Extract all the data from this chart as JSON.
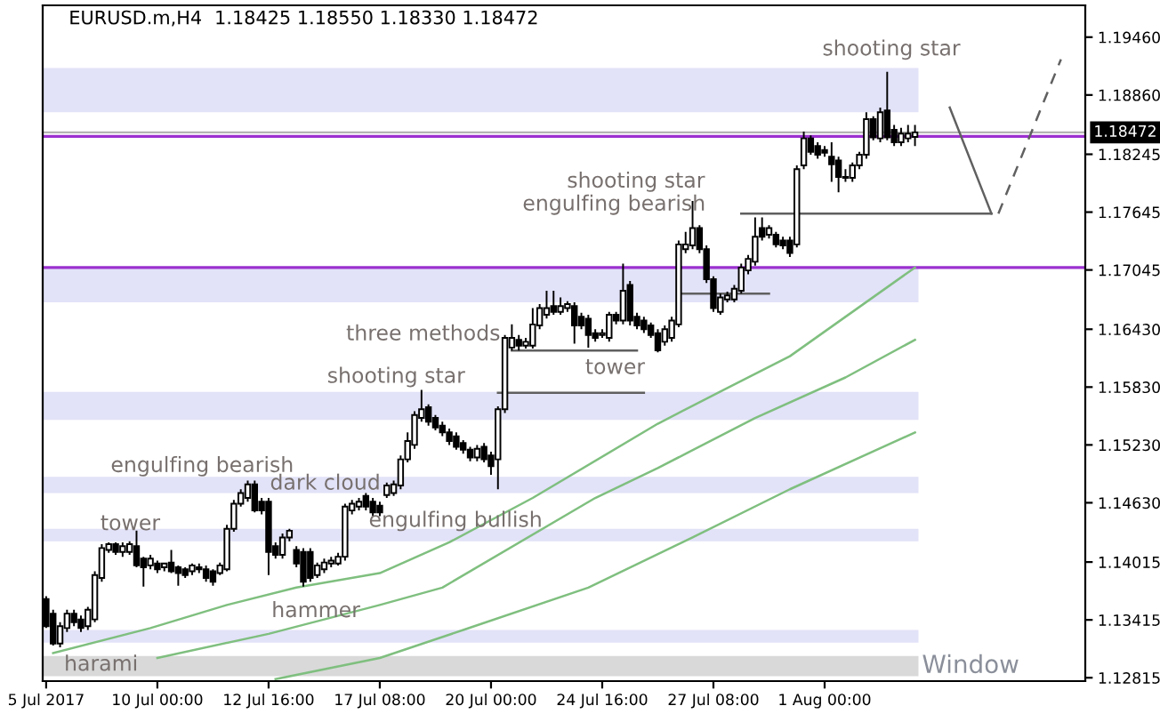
{
  "chart_data": {
    "type": "candlestick",
    "title": "EURUSD.m,H4",
    "subtitle": "1.18425 1.18550 1.18330 1.18472",
    "categories": [
      "5 Jul 2017",
      null,
      null,
      null,
      null,
      null,
      null,
      null,
      null,
      null,
      null,
      null,
      null,
      null,
      null,
      null,
      "10 Jul 00:00",
      null,
      null,
      null,
      null,
      null,
      null,
      null,
      null,
      null,
      null,
      null,
      null,
      null,
      null,
      null,
      "12 Jul 16:00",
      null,
      null,
      null,
      null,
      null,
      null,
      null,
      null,
      null,
      null,
      null,
      null,
      null,
      null,
      null,
      "17 Jul 08:00",
      null,
      null,
      null,
      null,
      null,
      null,
      null,
      null,
      null,
      null,
      null,
      null,
      null,
      null,
      null,
      "20 Jul 00:00",
      null,
      null,
      null,
      null,
      null,
      null,
      null,
      null,
      null,
      null,
      null,
      null,
      null,
      null,
      null,
      "24 Jul 16:00",
      null,
      null,
      null,
      null,
      null,
      null,
      null,
      null,
      null,
      null,
      null,
      null,
      null,
      null,
      null,
      "27 Jul 08:00",
      null,
      null,
      null,
      null,
      null,
      null,
      null,
      null,
      null,
      null,
      null,
      null,
      null,
      null,
      null,
      "1 Aug 00:00",
      null,
      null,
      null,
      null,
      null,
      null,
      null,
      null,
      null,
      null,
      null,
      null,
      null,
      null,
      null,
      null,
      null,
      null,
      null,
      null,
      null,
      null,
      null,
      null,
      null,
      null,
      null,
      null,
      null,
      null,
      null,
      null,
      null,
      null,
      null,
      null,
      null
    ],
    "ohlc": [
      [
        1.1363,
        1.1366,
        1.1333,
        1.1335
      ],
      [
        1.1348,
        1.1352,
        1.1315,
        1.1317
      ],
      [
        1.1317,
        1.1339,
        1.1313,
        1.1335
      ],
      [
        1.1333,
        1.1352,
        1.1329,
        1.1348
      ],
      [
        1.1348,
        1.1352,
        1.1335,
        1.1339
      ],
      [
        1.1342,
        1.1346,
        1.1329,
        1.1333
      ],
      [
        1.1335,
        1.1355,
        1.1331,
        1.1352
      ],
      [
        1.1342,
        1.1392,
        1.1339,
        1.1388
      ],
      [
        1.1385,
        1.142,
        1.1381,
        1.1416
      ],
      [
        1.1414,
        1.1422,
        1.1411,
        1.142
      ],
      [
        1.142,
        1.1422,
        1.1409,
        1.1412
      ],
      [
        1.1412,
        1.1422,
        1.1407,
        1.1418
      ],
      [
        1.1412,
        1.1423,
        1.1409,
        1.142
      ],
      [
        1.1418,
        1.1434,
        1.1396,
        1.1398
      ],
      [
        1.1405,
        1.1407,
        1.1376,
        1.1396
      ],
      [
        1.1398,
        1.1409,
        1.1394,
        1.1405
      ],
      [
        1.14,
        1.1403,
        1.139,
        1.1394
      ],
      [
        1.1396,
        1.1401,
        1.1392,
        1.14
      ],
      [
        1.1401,
        1.1414,
        1.139,
        1.1392
      ],
      [
        1.1396,
        1.1398,
        1.1377,
        1.139
      ],
      [
        1.1394,
        1.1396,
        1.1385,
        1.1388
      ],
      [
        1.1392,
        1.14,
        1.1388,
        1.1398
      ],
      [
        1.1396,
        1.14,
        1.139,
        1.1394
      ],
      [
        1.1394,
        1.1398,
        1.1381,
        1.1385
      ],
      [
        1.1392,
        1.1394,
        1.1377,
        1.1381
      ],
      [
        1.139,
        1.1401,
        1.1388,
        1.1398
      ],
      [
        1.1394,
        1.144,
        1.1392,
        1.1436
      ],
      [
        1.1436,
        1.1466,
        1.1433,
        1.1462
      ],
      [
        1.1462,
        1.1477,
        1.1459,
        1.1473
      ],
      [
        1.1468,
        1.1486,
        1.1464,
        1.1482
      ],
      [
        1.1482,
        1.1486,
        1.1453,
        1.1455
      ],
      [
        1.1464,
        1.1468,
        1.1451,
        1.1455
      ],
      [
        1.1464,
        1.1468,
        1.1388,
        1.1412
      ],
      [
        1.1418,
        1.1422,
        1.1405,
        1.1409
      ],
      [
        1.1409,
        1.1431,
        1.1405,
        1.1427
      ],
      [
        1.1427,
        1.1436,
        1.1423,
        1.1434
      ],
      [
        1.1414,
        1.1418,
        1.1396,
        1.14
      ],
      [
        1.1412,
        1.1416,
        1.1376,
        1.1381
      ],
      [
        1.1412,
        1.1416,
        1.1381,
        1.1385
      ],
      [
        1.1388,
        1.1401,
        1.1385,
        1.1398
      ],
      [
        1.1394,
        1.1405,
        1.139,
        1.1401
      ],
      [
        1.14,
        1.1407,
        1.1396,
        1.1403
      ],
      [
        1.14,
        1.1411,
        1.1398,
        1.1407
      ],
      [
        1.1407,
        1.1462,
        1.1403,
        1.1459
      ],
      [
        1.1455,
        1.1466,
        1.1451,
        1.1462
      ],
      [
        1.1459,
        1.1468,
        1.1455,
        1.1464
      ],
      [
        1.147,
        1.1473,
        1.1455,
        1.1459
      ],
      [
        1.1464,
        1.1468,
        1.1449,
        1.1453
      ],
      [
        1.146,
        1.1464,
        1.1449,
        1.1453
      ],
      [
        1.1471,
        1.1484,
        1.1468,
        1.1481
      ],
      [
        1.1473,
        1.1486,
        1.147,
        1.1482
      ],
      [
        1.1481,
        1.1512,
        1.1477,
        1.1508
      ],
      [
        1.1508,
        1.1536,
        1.1505,
        1.1527
      ],
      [
        1.1523,
        1.1558,
        1.1519,
        1.1554
      ],
      [
        1.1551,
        1.158,
        1.1547,
        1.156
      ],
      [
        1.1562,
        1.1565,
        1.1543,
        1.1547
      ],
      [
        1.1551,
        1.1554,
        1.1538,
        1.1541
      ],
      [
        1.1543,
        1.1547,
        1.1532,
        1.1536
      ],
      [
        1.1536,
        1.154,
        1.1523,
        1.1527
      ],
      [
        1.1532,
        1.1536,
        1.1518,
        1.1521
      ],
      [
        1.1525,
        1.1528,
        1.1514,
        1.1518
      ],
      [
        1.1518,
        1.1521,
        1.1506,
        1.151
      ],
      [
        1.151,
        1.1523,
        1.1506,
        1.1519
      ],
      [
        1.1521,
        1.1525,
        1.1505,
        1.1508
      ],
      [
        1.1512,
        1.1516,
        1.1492,
        1.1501
      ],
      [
        1.1508,
        1.1563,
        1.1477,
        1.156
      ],
      [
        1.156,
        1.1637,
        1.1556,
        1.1634
      ],
      [
        1.1624,
        1.1648,
        1.1621,
        1.1634
      ],
      [
        1.1632,
        1.1637,
        1.1621,
        1.1626
      ],
      [
        1.1626,
        1.1634,
        1.1623,
        1.163
      ],
      [
        1.1626,
        1.1665,
        1.1623,
        1.1648
      ],
      [
        1.1647,
        1.1669,
        1.1643,
        1.1665
      ],
      [
        1.1658,
        1.1683,
        1.1654,
        1.1665
      ],
      [
        1.1667,
        1.1683,
        1.1658,
        1.1661
      ],
      [
        1.1661,
        1.1676,
        1.1658,
        1.1667
      ],
      [
        1.1665,
        1.1672,
        1.1661,
        1.1669
      ],
      [
        1.1667,
        1.1671,
        1.1628,
        1.1647
      ],
      [
        1.1656,
        1.166,
        1.1643,
        1.1647
      ],
      [
        1.1654,
        1.1658,
        1.1624,
        1.1637
      ],
      [
        1.1639,
        1.1643,
        1.163,
        1.1634
      ],
      [
        1.1637,
        1.1643,
        1.1634,
        1.1639
      ],
      [
        1.1634,
        1.1661,
        1.163,
        1.1658
      ],
      [
        1.1658,
        1.1661,
        1.1648,
        1.1652
      ],
      [
        1.1652,
        1.1711,
        1.1648,
        1.1683
      ],
      [
        1.1689,
        1.1693,
        1.1647,
        1.1652
      ],
      [
        1.1656,
        1.166,
        1.1643,
        1.1647
      ],
      [
        1.1652,
        1.1656,
        1.1639,
        1.1643
      ],
      [
        1.1647,
        1.165,
        1.1634,
        1.1637
      ],
      [
        1.1639,
        1.1643,
        1.1619,
        1.1621
      ],
      [
        1.163,
        1.1647,
        1.1626,
        1.1643
      ],
      [
        1.1634,
        1.1656,
        1.163,
        1.1652
      ],
      [
        1.1648,
        1.1735,
        1.1645,
        1.1731
      ],
      [
        1.1726,
        1.1744,
        1.1722,
        1.1731
      ],
      [
        1.173,
        1.1776,
        1.1726,
        1.1748
      ],
      [
        1.1748,
        1.1751,
        1.1722,
        1.1726
      ],
      [
        1.1726,
        1.173,
        1.1691,
        1.1695
      ],
      [
        1.1695,
        1.1698,
        1.1661,
        1.1665
      ],
      [
        1.1661,
        1.168,
        1.1658,
        1.1676
      ],
      [
        1.1674,
        1.1682,
        1.1671,
        1.1678
      ],
      [
        1.1674,
        1.1689,
        1.1671,
        1.1685
      ],
      [
        1.1683,
        1.1711,
        1.168,
        1.1707
      ],
      [
        1.1704,
        1.172,
        1.17,
        1.1716
      ],
      [
        1.1713,
        1.1759,
        1.1709,
        1.1739
      ],
      [
        1.1748,
        1.1759,
        1.1735,
        1.1739
      ],
      [
        1.1741,
        1.1751,
        1.1737,
        1.1748
      ],
      [
        1.1741,
        1.1744,
        1.1728,
        1.1731
      ],
      [
        1.1735,
        1.1739,
        1.1726,
        1.173
      ],
      [
        1.1735,
        1.1739,
        1.1718,
        1.1722
      ],
      [
        1.1731,
        1.1813,
        1.1728,
        1.1809
      ],
      [
        1.1813,
        1.1848,
        1.1809,
        1.1841
      ],
      [
        1.1841,
        1.1844,
        1.1824,
        1.1827
      ],
      [
        1.1833,
        1.1837,
        1.182,
        1.1824
      ],
      [
        1.1829,
        1.1833,
        1.1822,
        1.1826
      ],
      [
        1.1822,
        1.1837,
        1.1796,
        1.1814
      ],
      [
        1.1818,
        1.1822,
        1.1785,
        1.1801
      ],
      [
        1.1801,
        1.1809,
        1.1796,
        1.18
      ],
      [
        1.18,
        1.1816,
        1.1796,
        1.1813
      ],
      [
        1.1813,
        1.1827,
        1.1809,
        1.1824
      ],
      [
        1.1824,
        1.1868,
        1.182,
        1.1861
      ],
      [
        1.1861,
        1.1864,
        1.1839,
        1.1842
      ],
      [
        1.1841,
        1.1873,
        1.1837,
        1.1868
      ],
      [
        1.187,
        1.191,
        1.1839,
        1.1842
      ],
      [
        1.185,
        1.1855,
        1.1833,
        1.1837
      ],
      [
        1.1837,
        1.1852,
        1.1833,
        1.1846
      ],
      [
        1.1841,
        1.1855,
        1.1837,
        1.1846
      ],
      [
        1.18425,
        1.1855,
        1.1833,
        1.18472
      ],
      null,
      null,
      null,
      null,
      null,
      null,
      null,
      null,
      null,
      null,
      null,
      null,
      null,
      null,
      null,
      null,
      null,
      null,
      null,
      null,
      null,
      null,
      null,
      null
    ],
    "series": [
      {
        "type": "line",
        "color": "#7fbf7f",
        "values": [
          null,
          1.1307,
          null,
          null,
          null,
          null,
          null,
          null,
          null,
          null,
          null,
          null,
          null,
          null,
          null,
          1.1333,
          null,
          null,
          null,
          null,
          null,
          null,
          null,
          null,
          null,
          null,
          1.1357,
          null,
          null,
          null,
          null,
          null,
          null,
          null,
          null,
          null,
          1.1375,
          null,
          null,
          null,
          null,
          null,
          null,
          null,
          null,
          null,
          null,
          null,
          1.139,
          null,
          null,
          null,
          null,
          null,
          null,
          null,
          null,
          null,
          1.1422,
          null,
          null,
          null,
          null,
          null,
          null,
          null,
          null,
          null,
          null,
          null,
          1.1468,
          null,
          null,
          null,
          null,
          null,
          null,
          null,
          null,
          null,
          null,
          null,
          null,
          null,
          null,
          null,
          null,
          null,
          1.1545,
          null,
          null,
          null,
          null,
          null,
          null,
          null,
          null,
          null,
          1.1582,
          null,
          null,
          null,
          null,
          null,
          null,
          null,
          null,
          1.1615,
          null,
          null,
          null,
          null,
          null,
          null,
          null,
          null,
          null,
          null,
          null,
          null,
          null,
          null,
          null,
          null,
          null,
          1.1707,
          null,
          null,
          null,
          null,
          null,
          null,
          null,
          null,
          null,
          null,
          null,
          null,
          null,
          null,
          null,
          null,
          null,
          null,
          null,
          null,
          null,
          null,
          null,
          null
        ]
      },
      {
        "type": "line",
        "color": "#7fbf7f",
        "values": [
          null,
          null,
          null,
          null,
          null,
          null,
          null,
          null,
          null,
          null,
          null,
          null,
          null,
          null,
          null,
          null,
          1.1302,
          null,
          null,
          null,
          null,
          null,
          null,
          null,
          null,
          null,
          null,
          null,
          null,
          null,
          null,
          null,
          1.1327,
          null,
          null,
          null,
          null,
          null,
          null,
          null,
          null,
          null,
          null,
          null,
          null,
          null,
          null,
          null,
          1.1357,
          null,
          null,
          null,
          null,
          null,
          null,
          null,
          null,
          1.1375,
          null,
          null,
          null,
          null,
          null,
          null,
          null,
          null,
          null,
          null,
          null,
          null,
          null,
          null,
          null,
          null,
          null,
          null,
          null,
          null,
          null,
          1.1468,
          null,
          null,
          null,
          null,
          null,
          null,
          null,
          null,
          1.1499,
          null,
          null,
          null,
          null,
          null,
          null,
          null,
          null,
          null,
          null,
          null,
          null,
          null,
          1.1551,
          null,
          null,
          null,
          null,
          null,
          null,
          null,
          null,
          null,
          null,
          null,
          null,
          1.1593,
          null,
          null,
          null,
          null,
          null,
          null,
          null,
          null,
          null,
          1.1632,
          null,
          null,
          null,
          null,
          null,
          null,
          null,
          null,
          null,
          null,
          null,
          null,
          null,
          null,
          null,
          null,
          null,
          null,
          null,
          null,
          null,
          null,
          null,
          null
        ]
      },
      {
        "type": "line",
        "color": "#7fbf7f",
        "values": [
          null,
          null,
          null,
          null,
          null,
          null,
          null,
          null,
          null,
          null,
          null,
          null,
          null,
          null,
          null,
          null,
          null,
          null,
          null,
          null,
          null,
          null,
          null,
          null,
          null,
          null,
          null,
          null,
          null,
          null,
          null,
          null,
          null,
          1.128,
          null,
          null,
          null,
          null,
          null,
          null,
          null,
          null,
          null,
          null,
          null,
          null,
          null,
          null,
          1.1302,
          null,
          null,
          null,
          null,
          null,
          null,
          null,
          null,
          null,
          null,
          null,
          1.1331,
          null,
          null,
          null,
          null,
          null,
          null,
          null,
          null,
          null,
          null,
          null,
          null,
          null,
          null,
          null,
          null,
          null,
          1.1375,
          null,
          null,
          null,
          null,
          null,
          null,
          null,
          null,
          null,
          null,
          null,
          null,
          null,
          null,
          1.1427,
          null,
          null,
          null,
          null,
          null,
          null,
          null,
          null,
          null,
          null,
          null,
          null,
          null,
          1.1477,
          null,
          null,
          null,
          null,
          null,
          null,
          null,
          null,
          null,
          null,
          null,
          null,
          null,
          null,
          null,
          null,
          null,
          1.1536,
          null,
          null,
          null,
          null,
          null,
          null,
          null,
          null,
          null,
          null,
          null,
          null,
          null,
          null,
          null,
          null,
          null,
          null,
          null,
          null,
          null,
          null,
          null,
          null
        ]
      },
      {
        "type": "line",
        "color": "#606060",
        "line_style": "solid",
        "values": [
          null,
          null,
          null,
          null,
          null,
          null,
          null,
          null,
          null,
          null,
          null,
          null,
          null,
          null,
          null,
          null,
          null,
          null,
          null,
          null,
          null,
          null,
          null,
          null,
          null,
          null,
          null,
          null,
          null,
          null,
          null,
          null,
          null,
          null,
          null,
          null,
          null,
          null,
          null,
          null,
          null,
          null,
          null,
          null,
          null,
          null,
          null,
          null,
          null,
          null,
          null,
          null,
          null,
          null,
          null,
          null,
          null,
          null,
          null,
          null,
          null,
          null,
          null,
          null,
          null,
          null,
          null,
          1.1621,
          null,
          null,
          null,
          null,
          null,
          null,
          null,
          null,
          null,
          null,
          null,
          null,
          null,
          null,
          null,
          null,
          null,
          1.1621,
          null,
          null,
          null,
          null,
          null,
          null,
          null,
          null,
          null,
          null,
          null,
          null,
          null,
          null,
          null,
          null,
          null,
          null,
          null,
          null,
          null,
          null,
          null,
          null,
          null,
          null,
          null,
          null,
          null,
          null,
          null,
          null,
          null,
          null,
          null,
          null,
          null,
          null,
          null,
          null,
          null,
          null,
          null,
          null,
          null,
          null,
          null,
          null,
          null,
          null,
          null,
          null,
          null,
          null,
          null,
          null,
          null,
          null,
          null,
          null,
          null,
          null,
          null,
          null
        ]
      },
      {
        "type": "line",
        "color": "#606060",
        "line_style": "solid",
        "values": [
          null,
          null,
          null,
          null,
          null,
          null,
          null,
          null,
          null,
          null,
          null,
          null,
          null,
          null,
          null,
          null,
          null,
          null,
          null,
          null,
          null,
          null,
          null,
          null,
          null,
          null,
          null,
          null,
          null,
          null,
          null,
          null,
          null,
          null,
          null,
          null,
          null,
          null,
          null,
          null,
          null,
          null,
          null,
          null,
          null,
          null,
          null,
          null,
          null,
          null,
          null,
          null,
          null,
          null,
          null,
          null,
          null,
          null,
          null,
          null,
          null,
          null,
          null,
          null,
          null,
          1.1577,
          null,
          null,
          null,
          null,
          null,
          null,
          null,
          null,
          null,
          null,
          null,
          null,
          null,
          null,
          null,
          null,
          null,
          null,
          null,
          null,
          1.1577,
          null,
          null,
          null,
          null,
          null,
          null,
          null,
          null,
          null,
          null,
          null,
          null,
          null,
          null,
          null,
          null,
          null,
          null,
          null,
          null,
          null,
          null,
          null,
          null,
          null,
          null,
          null,
          null,
          null,
          null,
          null,
          null,
          null,
          null,
          null,
          null,
          null,
          null,
          null,
          null,
          null,
          null,
          null,
          null,
          null,
          null,
          null,
          null,
          null,
          null,
          null,
          null,
          null,
          null,
          null,
          null,
          null,
          null,
          null,
          null,
          null,
          null,
          null
        ]
      },
      {
        "type": "line",
        "color": "#606060",
        "line_style": "solid",
        "values": [
          null,
          null,
          null,
          null,
          null,
          null,
          null,
          null,
          null,
          null,
          null,
          null,
          null,
          null,
          null,
          null,
          null,
          null,
          null,
          null,
          null,
          null,
          null,
          null,
          null,
          null,
          null,
          null,
          null,
          null,
          null,
          null,
          null,
          null,
          null,
          null,
          null,
          null,
          null,
          null,
          null,
          null,
          null,
          null,
          null,
          null,
          null,
          null,
          null,
          null,
          null,
          null,
          null,
          null,
          null,
          null,
          null,
          null,
          null,
          null,
          null,
          null,
          null,
          null,
          null,
          null,
          null,
          null,
          null,
          null,
          null,
          null,
          null,
          null,
          null,
          null,
          null,
          null,
          null,
          null,
          null,
          null,
          null,
          null,
          null,
          null,
          null,
          null,
          null,
          null,
          null,
          1.168,
          null,
          null,
          null,
          null,
          null,
          null,
          null,
          null,
          null,
          null,
          null,
          null,
          1.168,
          null,
          null,
          null,
          null,
          null,
          null,
          null,
          null,
          null,
          null,
          null,
          null,
          null,
          null,
          null,
          null,
          null,
          null,
          null,
          null,
          null,
          null,
          null,
          null,
          null,
          null,
          null,
          null,
          null,
          null,
          null,
          null,
          null,
          null,
          null,
          null,
          null,
          null,
          null,
          null,
          null,
          null,
          null,
          null,
          null
        ]
      },
      {
        "type": "line",
        "color": "#606060",
        "line_style": "solid",
        "values": [
          null,
          null,
          null,
          null,
          null,
          null,
          null,
          null,
          null,
          null,
          null,
          null,
          null,
          null,
          null,
          null,
          null,
          null,
          null,
          null,
          null,
          null,
          null,
          null,
          null,
          null,
          null,
          null,
          null,
          null,
          null,
          null,
          null,
          null,
          null,
          null,
          null,
          null,
          null,
          null,
          null,
          null,
          null,
          null,
          null,
          null,
          null,
          null,
          null,
          null,
          null,
          null,
          null,
          null,
          null,
          null,
          null,
          null,
          null,
          null,
          null,
          null,
          null,
          null,
          null,
          null,
          null,
          null,
          null,
          null,
          null,
          null,
          null,
          null,
          null,
          null,
          null,
          null,
          null,
          null,
          null,
          null,
          null,
          null,
          null,
          null,
          null,
          null,
          null,
          null,
          null,
          null,
          null,
          null,
          null,
          null,
          null,
          null,
          null,
          null,
          1.1763,
          null,
          null,
          null,
          null,
          null,
          null,
          null,
          null,
          null,
          null,
          null,
          null,
          null,
          null,
          null,
          null,
          null,
          null,
          null,
          null,
          null,
          null,
          null,
          null,
          null,
          null,
          null,
          null,
          null,
          null,
          null,
          null,
          null,
          null,
          null,
          1.1763,
          null,
          null,
          null,
          null,
          null,
          null,
          null,
          null,
          null,
          null,
          null,
          null,
          null
        ]
      },
      {
        "type": "line",
        "color": "#606060",
        "line_style": "solid",
        "values": [
          null,
          null,
          null,
          null,
          null,
          null,
          null,
          null,
          null,
          null,
          null,
          null,
          null,
          null,
          null,
          null,
          null,
          null,
          null,
          null,
          null,
          null,
          null,
          null,
          null,
          null,
          null,
          null,
          null,
          null,
          null,
          null,
          null,
          null,
          null,
          null,
          null,
          null,
          null,
          null,
          null,
          null,
          null,
          null,
          null,
          null,
          null,
          null,
          null,
          null,
          null,
          null,
          null,
          null,
          null,
          null,
          null,
          null,
          null,
          null,
          null,
          null,
          null,
          null,
          null,
          null,
          null,
          null,
          null,
          null,
          null,
          null,
          null,
          null,
          null,
          null,
          null,
          null,
          null,
          null,
          null,
          null,
          null,
          null,
          null,
          null,
          null,
          null,
          null,
          null,
          null,
          null,
          null,
          null,
          null,
          null,
          null,
          null,
          null,
          null,
          null,
          null,
          null,
          null,
          null,
          null,
          null,
          null,
          null,
          null,
          null,
          null,
          null,
          null,
          null,
          null,
          null,
          null,
          null,
          null,
          null,
          null,
          null,
          null,
          null,
          null,
          null,
          null,
          null,
          null,
          1.1873,
          null,
          null,
          null,
          null,
          null,
          1.1763,
          null,
          null,
          null,
          null,
          null,
          null,
          null,
          null,
          null,
          null,
          null,
          null,
          null
        ]
      },
      {
        "type": "line",
        "color": "#606060",
        "line_style": "dashed",
        "values": [
          null,
          null,
          null,
          null,
          null,
          null,
          null,
          null,
          null,
          null,
          null,
          null,
          null,
          null,
          null,
          null,
          null,
          null,
          null,
          null,
          null,
          null,
          null,
          null,
          null,
          null,
          null,
          null,
          null,
          null,
          null,
          null,
          null,
          null,
          null,
          null,
          null,
          null,
          null,
          null,
          null,
          null,
          null,
          null,
          null,
          null,
          null,
          null,
          null,
          null,
          null,
          null,
          null,
          null,
          null,
          null,
          null,
          null,
          null,
          null,
          null,
          null,
          null,
          null,
          null,
          null,
          null,
          null,
          null,
          null,
          null,
          null,
          null,
          null,
          null,
          null,
          null,
          null,
          null,
          null,
          null,
          null,
          null,
          null,
          null,
          null,
          null,
          null,
          null,
          null,
          null,
          null,
          null,
          null,
          null,
          null,
          null,
          null,
          null,
          null,
          null,
          null,
          null,
          null,
          null,
          null,
          null,
          null,
          null,
          null,
          null,
          null,
          null,
          null,
          null,
          null,
          null,
          null,
          null,
          null,
          null,
          null,
          null,
          null,
          null,
          null,
          null,
          null,
          null,
          null,
          null,
          null,
          null,
          null,
          null,
          null,
          null,
          1.1763,
          null,
          null,
          null,
          null,
          null,
          null,
          null,
          null,
          1.1923,
          null,
          null,
          null
        ]
      }
    ],
    "ylim": [
      1.1278,
      1.1979
    ],
    "yticks": [
      {
        "value": 1.1946,
        "label": "1.19460"
      },
      {
        "value": 1.1886,
        "label": "1.18860"
      },
      {
        "value": 1.18245,
        "label": "1.18245"
      },
      {
        "value": 1.17645,
        "label": "1.17645"
      },
      {
        "value": 1.17045,
        "label": "1.17045"
      },
      {
        "value": 1.1643,
        "label": "1.16430"
      },
      {
        "value": 1.1583,
        "label": "1.15830"
      },
      {
        "value": 1.1523,
        "label": "1.15230"
      },
      {
        "value": 1.1463,
        "label": "1.14630"
      },
      {
        "value": 1.14015,
        "label": "1.14015"
      },
      {
        "value": 1.13415,
        "label": "1.13415"
      },
      {
        "value": 1.12815,
        "label": "1.12815"
      }
    ],
    "ref_lines": [
      {
        "axis": "y",
        "value": 1.18472,
        "label": "1.18472",
        "color": "#b4b4b4"
      },
      {
        "axis": "y",
        "value": 1.1843,
        "color": "#9b30d0"
      },
      {
        "axis": "y",
        "value": 1.1707,
        "color": "#9b30d0"
      }
    ],
    "bands": [
      {
        "axis": "y",
        "from": 1.1868,
        "to": 1.1914,
        "color": "#e2e2f8"
      },
      {
        "axis": "y",
        "from": 1.1671,
        "to": 1.1707,
        "color": "#e2e2f8"
      },
      {
        "axis": "y",
        "from": 1.1549,
        "to": 1.1578,
        "color": "#e2e2f8"
      },
      {
        "axis": "y",
        "from": 1.1473,
        "to": 1.149,
        "color": "#e2e2f8"
      },
      {
        "axis": "y",
        "from": 1.1423,
        "to": 1.1436,
        "color": "#e2e2f8"
      },
      {
        "axis": "y",
        "from": 1.1318,
        "to": 1.1331,
        "color": "#e2e2f8"
      },
      {
        "axis": "y",
        "from": 1.1283,
        "to": 1.1304,
        "color": "#d9d9d9",
        "label": "Window"
      }
    ],
    "annotations": [
      {
        "text": "shooting star",
        "y": 1.191
      },
      "shooting star",
      "engulfing bearish",
      "three methods",
      "shooting star",
      {
        "text": "tower",
        "y": 1.1577
      },
      "engulfing bearish",
      "dark cloud",
      "tower",
      "engulfing bullish",
      {
        "text": "hammer",
        "y": 1.1376
      },
      "harami"
    ]
  }
}
